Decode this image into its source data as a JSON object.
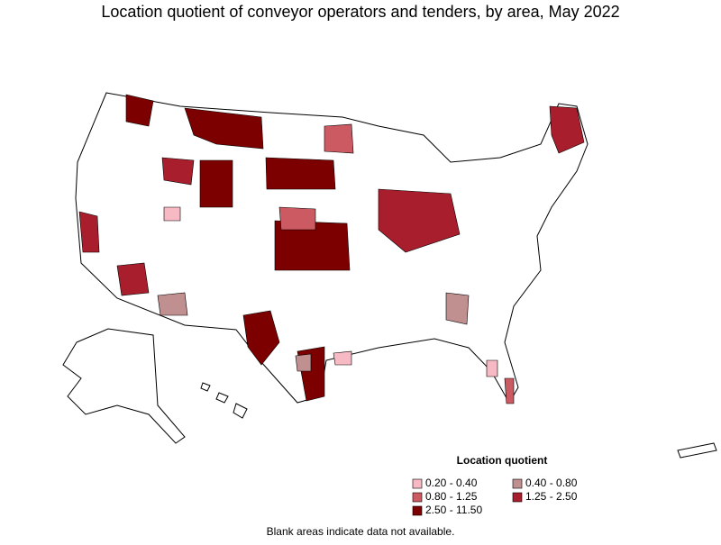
{
  "title": "Location quotient of conveyor operators and tenders, by area, May 2022",
  "legend": {
    "title": "Location quotient",
    "items": [
      {
        "label": "0.20 - 0.40",
        "color": "#f7b9c3"
      },
      {
        "label": "0.40 - 0.80",
        "color": "#c08f8f"
      },
      {
        "label": "0.80 - 1.25",
        "color": "#cc5a63"
      },
      {
        "label": "1.25 - 2.50",
        "color": "#a81e2c"
      },
      {
        "label": "2.50 - 11.50",
        "color": "#7d0000"
      }
    ]
  },
  "note": "Blank areas indicate data not available."
}
